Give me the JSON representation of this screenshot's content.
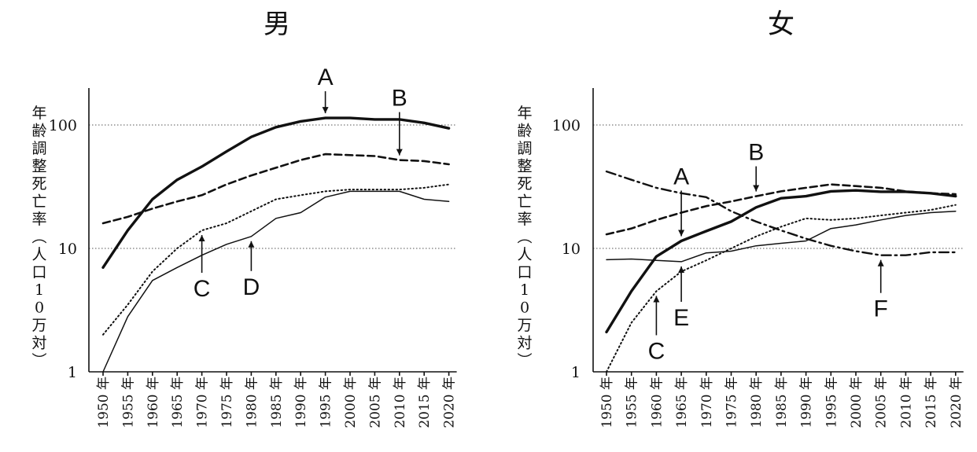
{
  "chart_data": [
    {
      "type": "line",
      "title": "男",
      "ylabel": "年齢調整死亡率（人口10万対）",
      "yscale": "log",
      "ylim": [
        1,
        200
      ],
      "yticks": [
        "1",
        "10",
        "100"
      ],
      "grid": "dotted at 10 and 100",
      "categories": [
        "1950 年",
        "1955 年",
        "1960 年",
        "1965 年",
        "1970 年",
        "1975 年",
        "1980 年",
        "1985 年",
        "1990 年",
        "1995 年",
        "2000 年",
        "2005 年",
        "2010 年",
        "2015 年",
        "2020 年"
      ],
      "series": [
        {
          "name": "A",
          "style": "thick-solid",
          "values": [
            7,
            14,
            25,
            36,
            46,
            61,
            80,
            96,
            107,
            114,
            114,
            111,
            111,
            104,
            94
          ]
        },
        {
          "name": "B",
          "style": "dashed",
          "values": [
            16,
            18,
            21,
            24,
            27,
            33,
            39,
            45,
            52,
            58,
            57,
            56,
            52,
            51,
            48
          ]
        },
        {
          "name": "C",
          "style": "dotted",
          "values": [
            2,
            3.5,
            6.5,
            10,
            14,
            16,
            20,
            25,
            27,
            29,
            30,
            30,
            30,
            31,
            33
          ]
        },
        {
          "name": "D",
          "style": "thin-solid",
          "values": [
            1,
            2.8,
            5.5,
            7,
            8.8,
            10.8,
            12.5,
            17.5,
            19.5,
            26,
            29,
            29,
            29,
            25,
            24
          ]
        }
      ],
      "annotations": [
        {
          "label": "A",
          "series": "A",
          "at": "1995 年",
          "from": "above"
        },
        {
          "label": "B",
          "series": "B",
          "at": "2010 年",
          "from": "above"
        },
        {
          "label": "C",
          "series": "C",
          "at": "1970 年",
          "from": "below"
        },
        {
          "label": "D",
          "series": "D",
          "at": "1980 年",
          "from": "below"
        }
      ]
    },
    {
      "type": "line",
      "title": "女",
      "ylabel": "年齢調整死亡率（人口10万対）",
      "yscale": "log",
      "ylim": [
        1,
        200
      ],
      "yticks": [
        "1",
        "10",
        "100"
      ],
      "grid": "dotted at 10 and 100",
      "categories": [
        "1950 年",
        "1955 年",
        "1960 年",
        "1965 年",
        "1970 年",
        "1975 年",
        "1980 年",
        "1985 年",
        "1990 年",
        "1995 年",
        "2000 年",
        "2005 年",
        "2010 年",
        "2015 年",
        "2020 年"
      ],
      "series": [
        {
          "name": "A",
          "style": "thick-solid",
          "values": [
            2.1,
            4.5,
            8.6,
            11.5,
            13.8,
            16.5,
            21.5,
            25.5,
            26.5,
            29,
            29.5,
            28.8,
            28.8,
            28,
            26.5
          ]
        },
        {
          "name": "B",
          "style": "dashed",
          "values": [
            13,
            14.5,
            17,
            19.5,
            22,
            24,
            26.5,
            29,
            31,
            33,
            32,
            31,
            29,
            28,
            27.5
          ]
        },
        {
          "name": "C",
          "style": "dotted",
          "values": [
            1,
            2.5,
            4.5,
            6.5,
            8,
            10,
            12.5,
            15,
            17.5,
            17,
            17.5,
            18.5,
            19.5,
            20.5,
            22.5
          ]
        },
        {
          "name": "E",
          "style": "thin-solid",
          "values": [
            8.1,
            8.2,
            8,
            7.8,
            9.2,
            9.5,
            10.5,
            11,
            11.5,
            14.5,
            15.5,
            17,
            18.5,
            19.5,
            20
          ]
        },
        {
          "name": "F",
          "style": "dash-dot",
          "values": [
            42,
            36,
            31,
            28,
            26,
            20,
            16.5,
            14,
            12,
            10.5,
            9.5,
            8.8,
            8.8,
            9.3,
            9.3
          ]
        }
      ],
      "annotations": [
        {
          "label": "A",
          "series": "A",
          "at": "1965 年",
          "from": "above"
        },
        {
          "label": "B",
          "series": "B",
          "at": "1980 年",
          "from": "above"
        },
        {
          "label": "C",
          "series": "C",
          "at": "1960 年",
          "from": "below"
        },
        {
          "label": "E",
          "series": "E",
          "at": "1965 年",
          "from": "below"
        },
        {
          "label": "F",
          "series": "F",
          "at": "2005 年",
          "from": "below"
        }
      ]
    }
  ]
}
